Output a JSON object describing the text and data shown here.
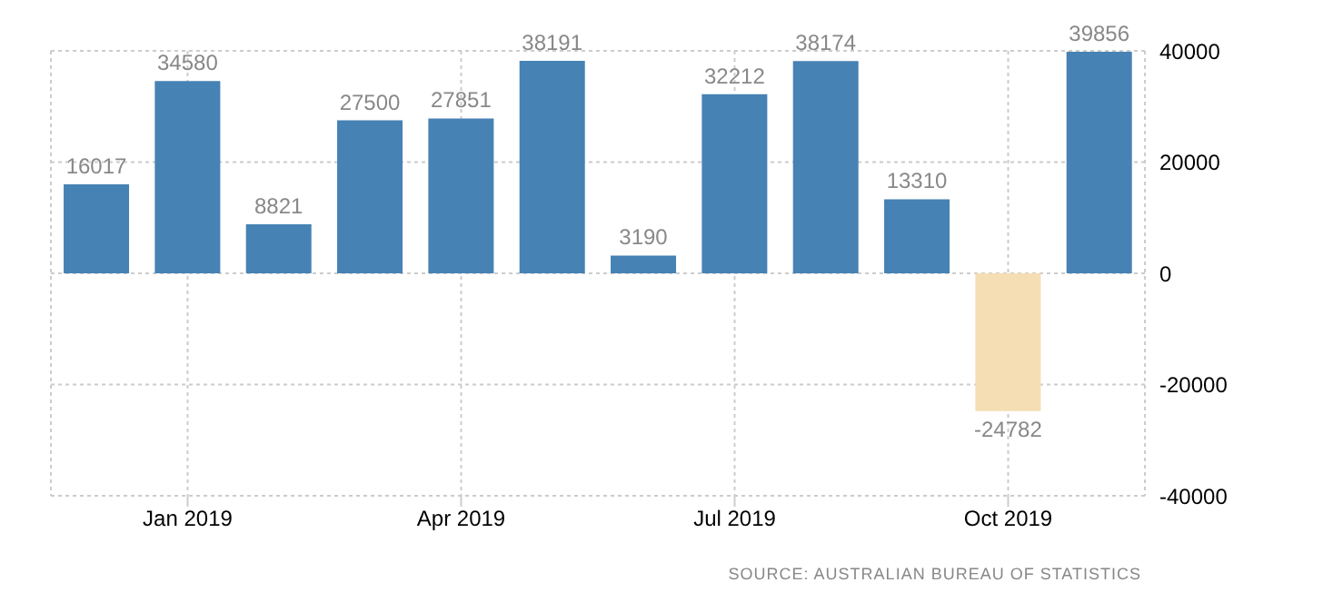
{
  "chart_data": {
    "type": "bar",
    "categories": [
      null,
      "Jan 2019",
      null,
      null,
      "Apr 2019",
      null,
      null,
      "Jul 2019",
      null,
      null,
      "Oct 2019",
      null
    ],
    "values": [
      16017,
      34580,
      8821,
      27500,
      27851,
      38191,
      3190,
      32212,
      38174,
      13310,
      -24782,
      39856
    ],
    "colors": [
      "#4682b4",
      "#4682b4",
      "#4682b4",
      "#4682b4",
      "#4682b4",
      "#4682b4",
      "#4682b4",
      "#4682b4",
      "#4682b4",
      "#4682b4",
      "#f5deb3",
      "#4682b4"
    ],
    "ylim": [
      -40000,
      40000
    ],
    "yticks": [
      -40000,
      -20000,
      0,
      20000,
      40000
    ],
    "grid": true,
    "data_labels": true,
    "annotations": [
      "SOURCE: AUSTRALIAN BUREAU OF STATISTICS"
    ]
  }
}
